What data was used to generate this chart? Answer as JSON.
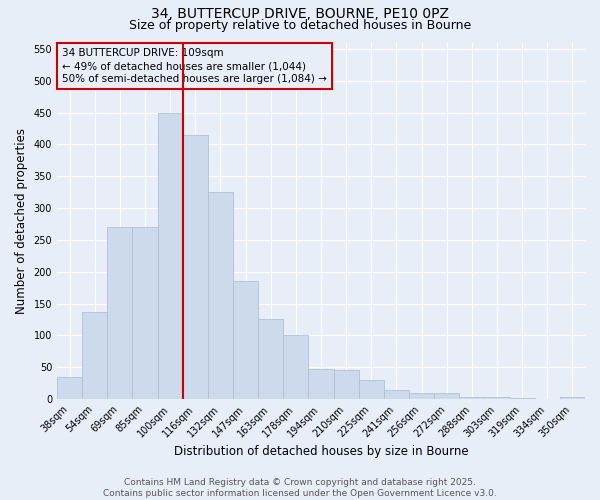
{
  "title_line1": "34, BUTTERCUP DRIVE, BOURNE, PE10 0PZ",
  "title_line2": "Size of property relative to detached houses in Bourne",
  "xlabel": "Distribution of detached houses by size in Bourne",
  "ylabel": "Number of detached properties",
  "categories": [
    "38sqm",
    "54sqm",
    "69sqm",
    "85sqm",
    "100sqm",
    "116sqm",
    "132sqm",
    "147sqm",
    "163sqm",
    "178sqm",
    "194sqm",
    "210sqm",
    "225sqm",
    "241sqm",
    "256sqm",
    "272sqm",
    "288sqm",
    "303sqm",
    "319sqm",
    "334sqm",
    "350sqm"
  ],
  "values": [
    35,
    137,
    270,
    270,
    450,
    415,
    325,
    185,
    125,
    100,
    47,
    46,
    30,
    15,
    10,
    10,
    3,
    3,
    2,
    0,
    3
  ],
  "bar_color": "#ccdaec",
  "bar_edge_color": "#aabcce",
  "vline_x": 4.5,
  "vline_color": "#cc0000",
  "annotation_text": "34 BUTTERCUP DRIVE: 109sqm\n← 49% of detached houses are smaller (1,044)\n50% of semi-detached houses are larger (1,084) →",
  "annotation_box_color": "#cc0000",
  "ylim": [
    0,
    560
  ],
  "yticks": [
    0,
    50,
    100,
    150,
    200,
    250,
    300,
    350,
    400,
    450,
    500,
    550
  ],
  "background_color": "#e8eef8",
  "footer_line1": "Contains HM Land Registry data © Crown copyright and database right 2025.",
  "footer_line2": "Contains public sector information licensed under the Open Government Licence v3.0.",
  "grid_color": "#ffffff",
  "title_fontsize": 10,
  "subtitle_fontsize": 9,
  "axis_label_fontsize": 8.5,
  "tick_fontsize": 7,
  "annotation_fontsize": 7.5,
  "footer_fontsize": 6.5
}
